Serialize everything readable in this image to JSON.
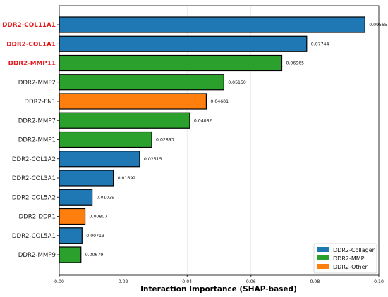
{
  "chart_data": {
    "type": "bar",
    "orientation": "horizontal",
    "title": "",
    "xlabel": "Interaction Importance (SHAP-based)",
    "ylabel": "",
    "xlim": [
      0,
      0.1
    ],
    "x_ticks": [
      0.0,
      0.02,
      0.04,
      0.06,
      0.08,
      0.1
    ],
    "x_tick_labels": [
      "0.00",
      "0.02",
      "0.04",
      "0.06",
      "0.08",
      "0.10"
    ],
    "grid": "vertical",
    "legend_position": "bottom-right",
    "categories": [
      "DDR2-COL11A1",
      "DDR2-COL1A1",
      "DDR2-MMP11",
      "DDR2-MMP2",
      "DDR2-FN1",
      "DDR2-MMP7",
      "DDR2-MMP1",
      "DDR2-COL1A2",
      "DDR2-COL3A1",
      "DDR2-COL5A2",
      "DDR2-DDR1",
      "DDR2-COL5A1",
      "DDR2-MMP9"
    ],
    "values": [
      0.09565,
      0.07744,
      0.06965,
      0.0515,
      0.04601,
      0.04082,
      0.02893,
      0.02515,
      0.01692,
      0.01029,
      0.00807,
      0.00713,
      0.00679
    ],
    "value_labels": [
      "0.09565",
      "0.07744",
      "0.06965",
      "0.05150",
      "0.04601",
      "0.04082",
      "0.02893",
      "0.02515",
      "0.01692",
      "0.01029",
      "0.00807",
      "0.00713",
      "0.00679"
    ],
    "groups": [
      "DDR2-Collagen",
      "DDR2-Collagen",
      "DDR2-MMP",
      "DDR2-MMP",
      "DDR2-Other",
      "DDR2-MMP",
      "DDR2-MMP",
      "DDR2-Collagen",
      "DDR2-Collagen",
      "DDR2-Collagen",
      "DDR2-Other",
      "DDR2-Collagen",
      "DDR2-MMP"
    ],
    "highlighted": [
      true,
      true,
      true,
      false,
      false,
      false,
      false,
      false,
      false,
      false,
      false,
      false,
      false
    ],
    "highlight_color": "#e31a1c",
    "legend": [
      {
        "name": "DDR2-Collagen",
        "color": "#1f77b4"
      },
      {
        "name": "DDR2-MMP",
        "color": "#2ca02c"
      },
      {
        "name": "DDR2-Other",
        "color": "#ff7f0e"
      }
    ]
  }
}
